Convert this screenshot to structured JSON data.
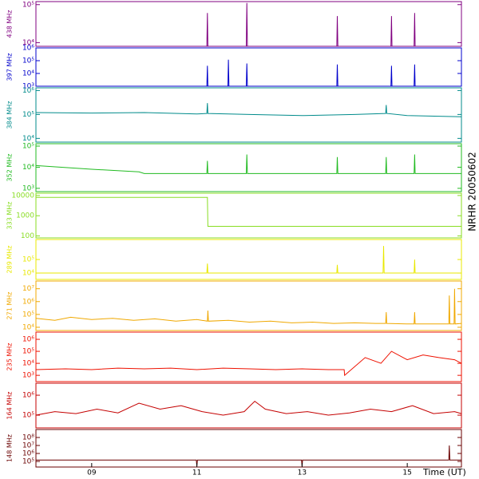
{
  "side_label": "NRHR 20050602",
  "xaxis": {
    "label": "Time (UT)",
    "xlim": [
      7.94,
      16.03
    ],
    "xticks": [
      {
        "value": 9,
        "label": "09"
      },
      {
        "value": 11,
        "label": "11"
      },
      {
        "value": 13,
        "label": "13"
      },
      {
        "value": 15,
        "label": "15"
      }
    ]
  },
  "chart_data": [
    {
      "type": "line",
      "ylabel": "438 MHz",
      "color": "#800080",
      "log": true,
      "ylim": [
        8000,
        120000
      ],
      "yticks": [
        {
          "value": 10000,
          "label": "10⁴"
        },
        {
          "value": 100000,
          "label": "10⁵"
        }
      ],
      "x": [
        7.94,
        11.19,
        11.2,
        11.21,
        11.94,
        11.95,
        11.96,
        13.66,
        13.67,
        13.68,
        14.69,
        14.7,
        14.71,
        15.13,
        15.14,
        15.15,
        16.03
      ],
      "values": [
        8000,
        8000,
        60000,
        8000,
        8000,
        110000,
        8000,
        8000,
        50000,
        8000,
        8000,
        50000,
        8000,
        8000,
        60000,
        8000,
        8000
      ]
    },
    {
      "type": "line",
      "ylabel": "397 MHz",
      "color": "#0000cc",
      "log": true,
      "ylim": [
        1000,
        1000000
      ],
      "yticks": [
        {
          "value": 1000,
          "label": "10³"
        },
        {
          "value": 10000,
          "label": "10⁴"
        },
        {
          "value": 100000,
          "label": "10⁵"
        },
        {
          "value": 1000000,
          "label": "10⁶"
        }
      ],
      "x": [
        7.94,
        11.19,
        11.2,
        11.21,
        11.59,
        11.6,
        11.61,
        11.94,
        11.95,
        11.96,
        13.66,
        13.67,
        13.68,
        14.69,
        14.7,
        14.71,
        15.13,
        15.14,
        15.15,
        16.03
      ],
      "values": [
        1000,
        1000,
        40000,
        1000,
        1000,
        120000,
        1000,
        1000,
        60000,
        1000,
        1000,
        50000,
        1000,
        1000,
        40000,
        1000,
        1000,
        50000,
        1000,
        1000
      ]
    },
    {
      "type": "line",
      "ylabel": "384 MHz",
      "color": "#008b8b",
      "log": true,
      "ylim": [
        7000,
        1300000
      ],
      "yticks": [
        {
          "value": 10000,
          "label": "10⁴"
        },
        {
          "value": 100000,
          "label": "10⁵"
        },
        {
          "value": 1000000,
          "label": "10⁶"
        }
      ],
      "x": [
        7.94,
        9.0,
        10.0,
        11.0,
        11.19,
        11.2,
        11.21,
        12.0,
        13.0,
        14.0,
        14.59,
        14.6,
        14.61,
        15.0,
        16.03
      ],
      "values": [
        120000,
        115000,
        120000,
        105000,
        110000,
        300000,
        110000,
        100000,
        90000,
        100000,
        110000,
        250000,
        110000,
        90000,
        80000
      ]
    },
    {
      "type": "line",
      "ylabel": "352 MHz",
      "color": "#22bb22",
      "log": true,
      "ylim": [
        700,
        130000
      ],
      "yticks": [
        {
          "value": 1000,
          "label": "10³"
        },
        {
          "value": 10000,
          "label": "10⁴"
        },
        {
          "value": 100000,
          "label": "10⁵"
        }
      ],
      "x": [
        7.94,
        9.0,
        9.9,
        10.0,
        11.19,
        11.2,
        11.21,
        11.94,
        11.95,
        11.96,
        13.66,
        13.67,
        13.68,
        14.59,
        14.6,
        14.61,
        15.13,
        15.14,
        15.15,
        16.03
      ],
      "values": [
        12000,
        8000,
        6000,
        5000,
        5000,
        20000,
        5000,
        5000,
        40000,
        5000,
        5000,
        30000,
        5000,
        5000,
        30000,
        5000,
        5000,
        40000,
        5000,
        5000
      ]
    },
    {
      "type": "line",
      "ylabel": "333 MHz",
      "color": "#88dd22",
      "log": true,
      "ylim": [
        80,
        13000
      ],
      "yticks": [
        100,
        1000,
        10000
      ],
      "x": [
        7.94,
        11.2,
        11.21,
        16.03
      ],
      "values": [
        8000,
        8000,
        300,
        300
      ]
    },
    {
      "type": "line",
      "ylabel": "289 MHz",
      "color": "#e8e800",
      "log": true,
      "ylim": [
        3400,
        3000000
      ],
      "yticks": [
        {
          "value": 10000,
          "label": "10⁴"
        },
        {
          "value": 100000,
          "label": "10⁵"
        }
      ],
      "x": [
        7.94,
        11.19,
        11.2,
        11.21,
        13.66,
        13.67,
        13.68,
        14.54,
        14.55,
        14.56,
        15.13,
        15.14,
        15.15,
        16.03
      ],
      "values": [
        10000,
        10000,
        50000,
        10000,
        10000,
        40000,
        10000,
        10000,
        1000000,
        10000,
        10000,
        100000,
        10000,
        10000
      ]
    },
    {
      "type": "line",
      "ylabel": "271 MHz",
      "color": "#f0a800",
      "log": true,
      "ylim": [
        5600,
        40000000
      ],
      "yticks": [
        {
          "value": 10000,
          "label": "10⁴"
        },
        {
          "value": 100000,
          "label": "10⁵"
        },
        {
          "value": 1000000,
          "label": "10⁶"
        },
        {
          "value": 10000000,
          "label": "10⁷"
        }
      ],
      "x": [
        7.94,
        8.3,
        8.6,
        9.0,
        9.4,
        9.8,
        10.2,
        10.6,
        11.0,
        11.2,
        11.21,
        11.22,
        11.6,
        12.0,
        12.4,
        12.8,
        13.2,
        13.6,
        14.0,
        14.4,
        14.59,
        14.6,
        14.61,
        15.0,
        15.13,
        15.14,
        15.15,
        15.5,
        15.79,
        15.8,
        15.81,
        15.89,
        15.9,
        15.91,
        16.03
      ],
      "values": [
        50000,
        35000,
        60000,
        40000,
        50000,
        35000,
        45000,
        30000,
        40000,
        30000,
        200000,
        30000,
        35000,
        25000,
        30000,
        22000,
        25000,
        20000,
        22000,
        20000,
        20000,
        150000,
        20000,
        18000,
        18000,
        150000,
        18000,
        18000,
        18000,
        3000000,
        18000,
        18000,
        10000000,
        18000,
        20000
      ]
    },
    {
      "type": "line",
      "ylabel": "235 MHz",
      "color": "#ee1100",
      "log": true,
      "ylim": [
        300,
        4000000
      ],
      "yticks": [
        {
          "value": 1000,
          "label": "10³"
        },
        {
          "value": 10000,
          "label": "10⁴"
        },
        {
          "value": 100000,
          "label": "10⁵"
        },
        {
          "value": 1000000,
          "label": "10⁶"
        }
      ],
      "x": [
        7.94,
        8.5,
        9.0,
        9.5,
        10.0,
        10.5,
        11.0,
        11.5,
        12.0,
        12.5,
        13.0,
        13.5,
        13.8,
        13.81,
        14.2,
        14.5,
        14.7,
        15.0,
        15.3,
        15.6,
        15.9,
        16.03
      ],
      "values": [
        3000,
        3500,
        3000,
        4000,
        3500,
        4000,
        3000,
        4000,
        3500,
        3000,
        3500,
        3000,
        3000,
        1000,
        30000,
        10000,
        100000,
        20000,
        50000,
        30000,
        20000,
        10000
      ]
    },
    {
      "type": "line",
      "ylabel": "164 MHz",
      "color": "#c40000",
      "log": true,
      "ylim": [
        23000,
        4000000
      ],
      "yticks": [
        {
          "value": 100000,
          "label": "10⁵"
        },
        {
          "value": 1000000,
          "label": "10⁶"
        }
      ],
      "x": [
        7.94,
        8.3,
        8.7,
        9.1,
        9.5,
        9.9,
        10.3,
        10.7,
        11.1,
        11.5,
        11.9,
        12.1,
        12.3,
        12.7,
        13.1,
        13.5,
        13.9,
        14.3,
        14.7,
        15.1,
        15.5,
        15.9,
        16.03
      ],
      "values": [
        100000,
        150000,
        120000,
        200000,
        130000,
        400000,
        200000,
        300000,
        150000,
        100000,
        150000,
        500000,
        200000,
        120000,
        150000,
        100000,
        130000,
        200000,
        150000,
        300000,
        120000,
        150000,
        120000
      ]
    },
    {
      "type": "line",
      "ylabel": "148 MHz",
      "color": "#6a0000",
      "log": true,
      "ylim": [
        20000,
        1000000000
      ],
      "yticks": [
        {
          "value": 100000,
          "label": "10⁵"
        },
        {
          "value": 1000000,
          "label": "10⁶"
        },
        {
          "value": 10000000,
          "label": "10⁷"
        },
        {
          "value": 100000000,
          "label": "10⁸"
        }
      ],
      "x": [
        7.94,
        9.0,
        10.0,
        10.99,
        11.0,
        11.01,
        11.5,
        12.0,
        12.5,
        12.99,
        13.0,
        13.01,
        14.0,
        15.0,
        15.79,
        15.8,
        15.81,
        16.03
      ],
      "values": [
        150000,
        150000,
        150000,
        150000,
        25000,
        150000,
        150000,
        150000,
        150000,
        150000,
        25000,
        150000,
        150000,
        150000,
        150000,
        10000000,
        150000,
        150000
      ]
    }
  ]
}
